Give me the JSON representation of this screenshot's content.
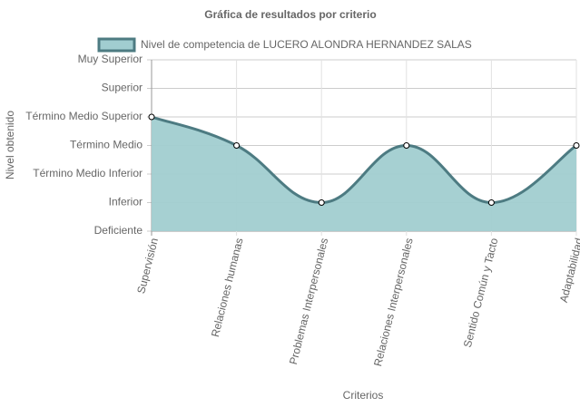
{
  "chart_data": {
    "type": "area",
    "title": "Gráfica de resultados por criterio",
    "x_label": "Criterios",
    "y_label": "Nivel obtenido",
    "categories": [
      "Supervisión",
      "Relaciones humanas",
      "Problemas Interpersonales",
      "Relaciones Interpersonales",
      "Sentido Común y Tacto",
      "Adaptabilidad"
    ],
    "series": [
      {
        "name": "Nivel de competencia de LUCERO ALONDRA HERNANDEZ SALAS",
        "color": "#4d7b82",
        "fill": "#a1cdd0",
        "values": [
          4,
          3,
          1,
          3,
          1,
          3
        ]
      }
    ],
    "ylim": [
      0,
      6
    ],
    "yticks": [
      {
        "value": 0,
        "label": "Deficiente"
      },
      {
        "value": 1,
        "label": "Inferior"
      },
      {
        "value": 2,
        "label": "Término Medio Inferior"
      },
      {
        "value": 3,
        "label": "Término Medio"
      },
      {
        "value": 4,
        "label": "Término Medio Superior"
      },
      {
        "value": 5,
        "label": "Superior"
      },
      {
        "value": 6,
        "label": "Muy Superior"
      }
    ],
    "grid": true
  }
}
